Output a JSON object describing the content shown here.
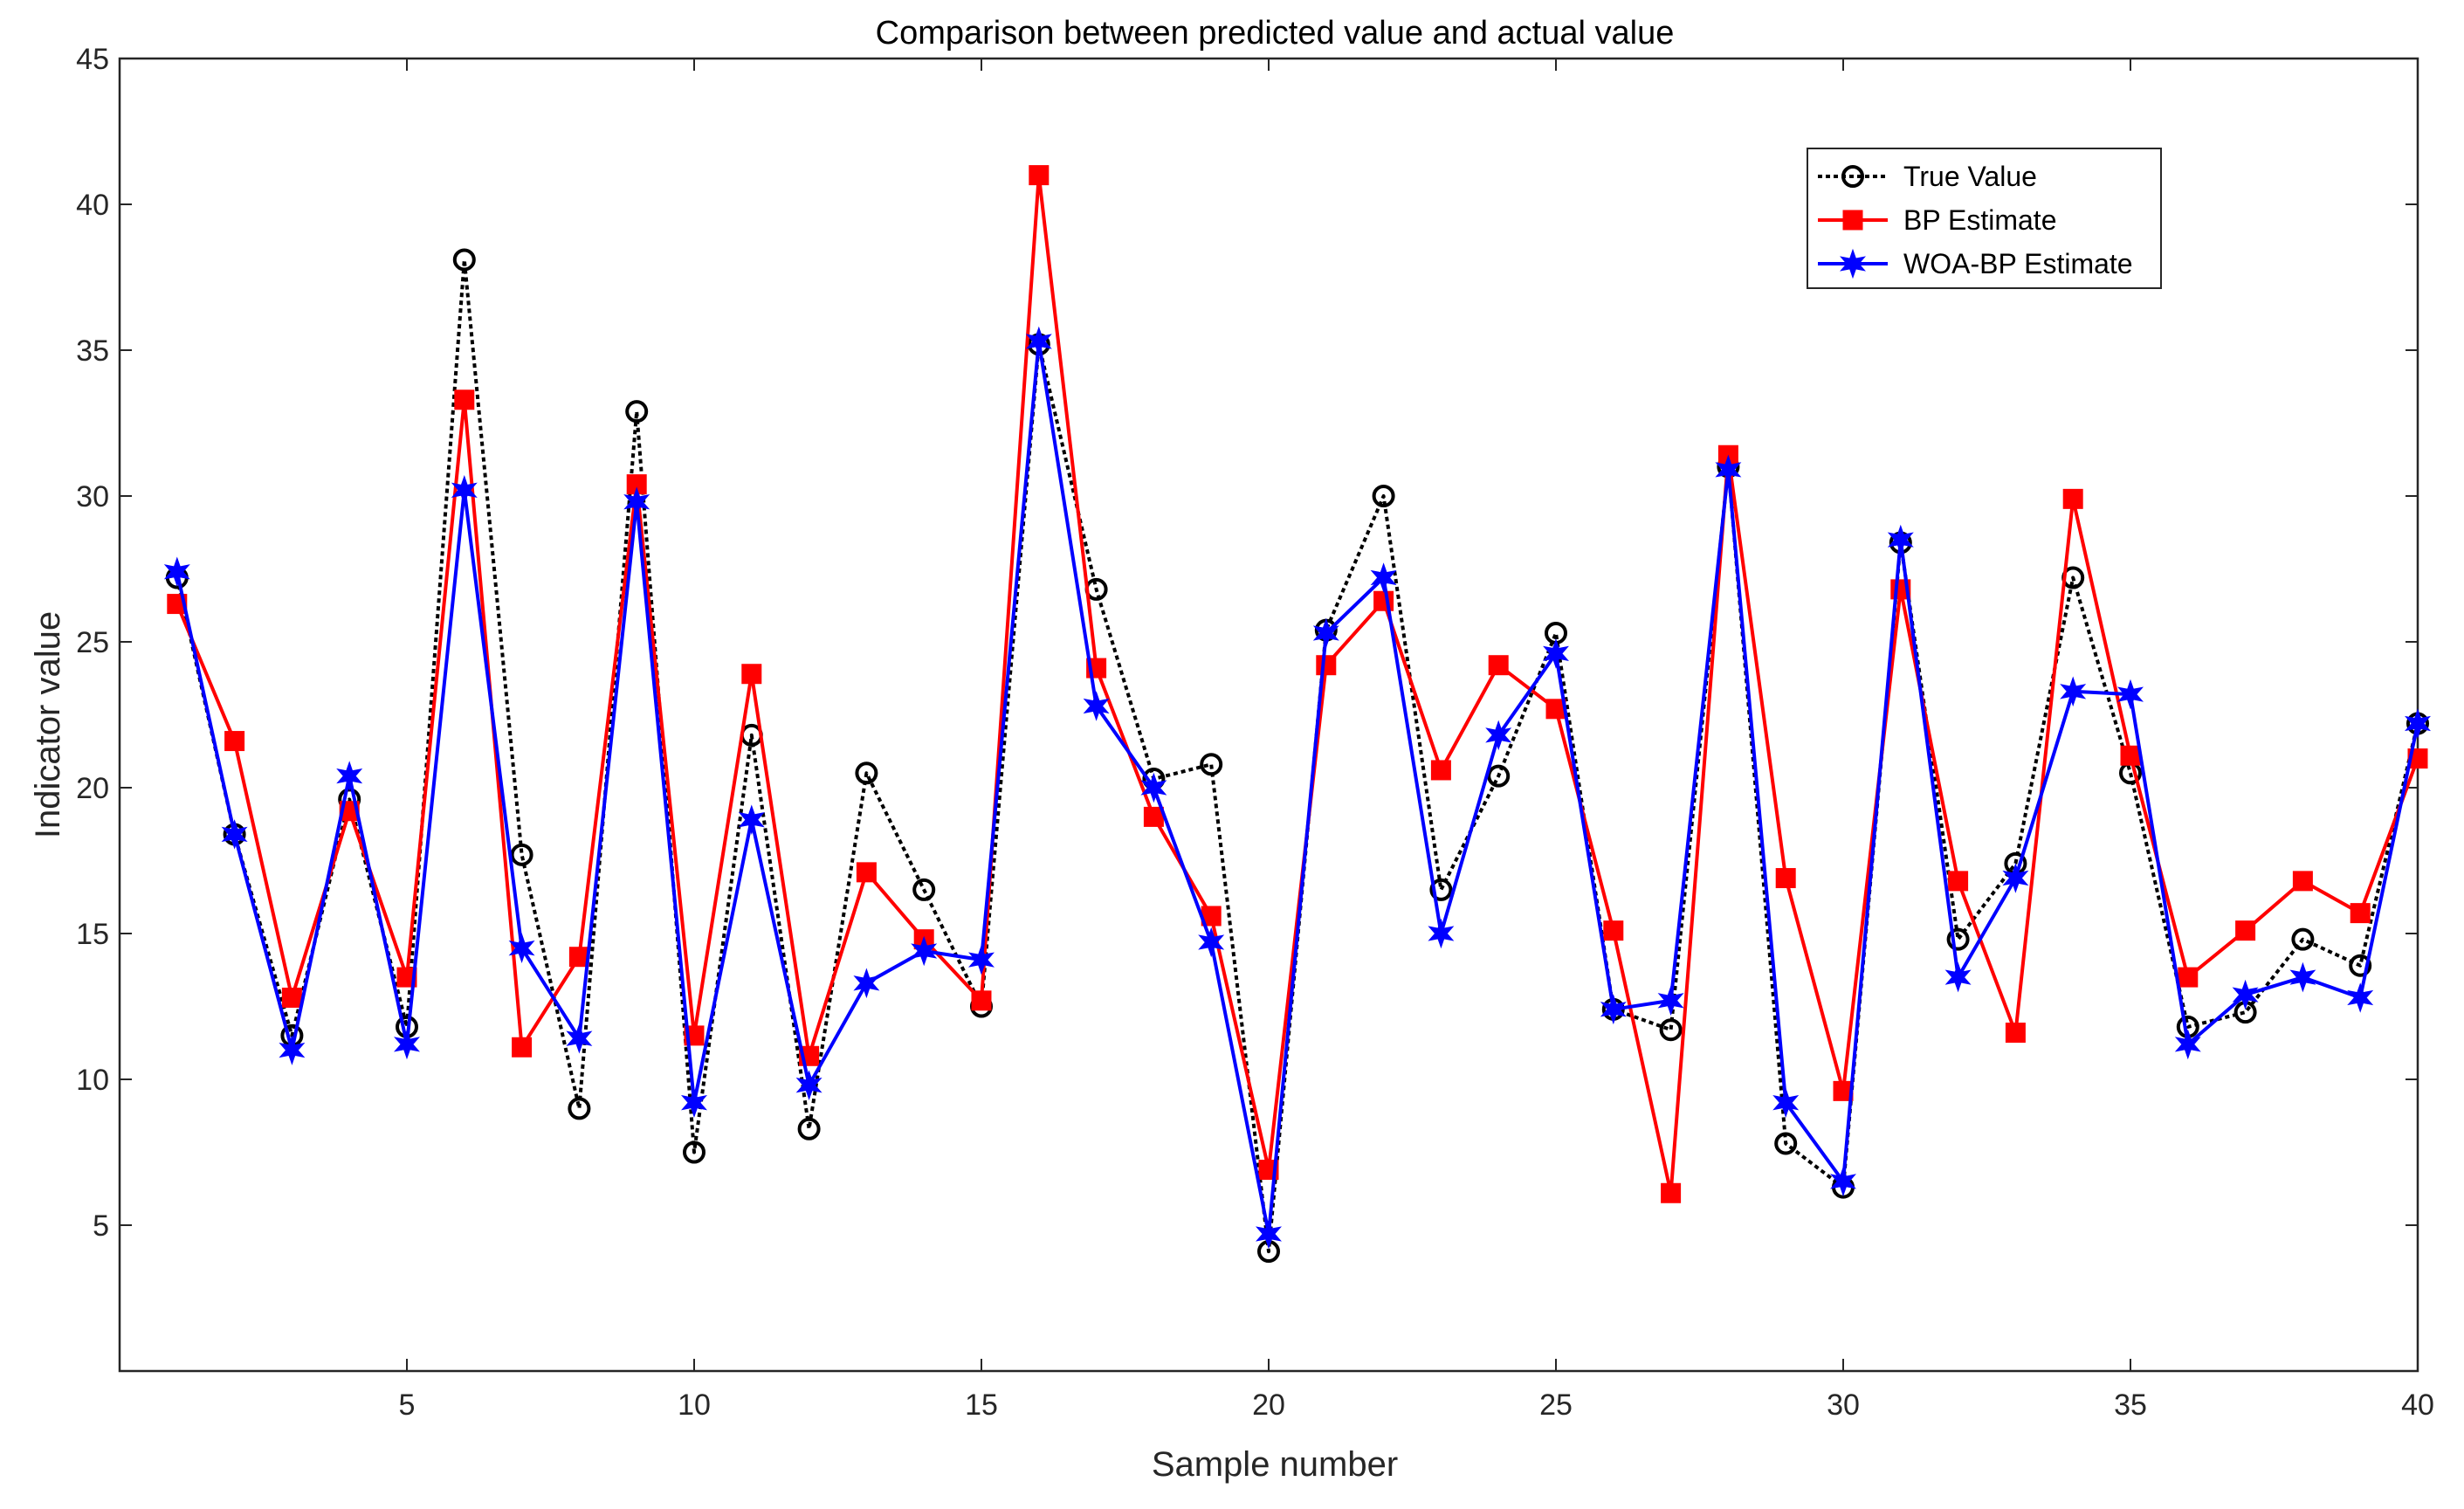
{
  "chart_data": {
    "type": "line",
    "title": "Comparison between predicted value and actual value",
    "xlabel": "Sample number",
    "ylabel": "Indicator value",
    "xlim": [
      0,
      40
    ],
    "ylim": [
      0,
      45
    ],
    "xticks": [
      5,
      10,
      15,
      20,
      25,
      30,
      35,
      40
    ],
    "yticks": [
      5,
      10,
      15,
      20,
      25,
      30,
      35,
      40,
      45
    ],
    "grid": false,
    "legend_position": "top-right",
    "x": [
      1,
      2,
      3,
      4,
      5,
      6,
      7,
      8,
      9,
      10,
      11,
      12,
      13,
      14,
      15,
      16,
      17,
      18,
      19,
      20,
      21,
      22,
      23,
      24,
      25,
      26,
      27,
      28,
      29,
      30,
      31,
      32,
      33,
      34,
      35,
      36,
      37,
      38,
      39,
      40
    ],
    "series": [
      {
        "name": "True Value",
        "color": "#000000",
        "line_style": "dotted",
        "marker": "circle",
        "values": [
          27.2,
          18.4,
          11.5,
          19.6,
          11.8,
          38.1,
          17.7,
          9.0,
          32.9,
          7.5,
          21.8,
          8.3,
          20.5,
          16.5,
          12.5,
          35.2,
          26.8,
          20.3,
          20.8,
          4.1,
          25.4,
          30.0,
          16.5,
          20.4,
          25.3,
          12.4,
          11.7,
          31.0,
          7.8,
          6.3,
          28.4,
          14.8,
          17.4,
          27.2,
          20.5,
          11.8,
          12.3,
          14.8,
          13.9,
          22.2
        ]
      },
      {
        "name": "BP Estimate",
        "color": "#ff0000",
        "line_style": "solid",
        "marker": "square",
        "values": [
          26.3,
          21.6,
          12.8,
          19.2,
          13.5,
          33.3,
          11.1,
          14.2,
          30.4,
          11.5,
          23.9,
          10.8,
          17.1,
          14.8,
          12.7,
          41.0,
          24.1,
          19.0,
          15.6,
          6.9,
          24.2,
          26.4,
          20.6,
          24.2,
          22.7,
          15.1,
          6.1,
          31.4,
          16.9,
          9.6,
          26.8,
          16.8,
          11.6,
          29.9,
          21.1,
          13.5,
          15.1,
          16.8,
          15.7,
          21.0
        ]
      },
      {
        "name": "WOA-BP  Estimate",
        "color": "#0000ff",
        "line_style": "solid",
        "marker": "star",
        "values": [
          27.4,
          18.4,
          11.0,
          20.4,
          11.2,
          30.2,
          14.5,
          11.4,
          29.8,
          9.2,
          18.9,
          9.8,
          13.3,
          14.4,
          14.1,
          35.3,
          22.8,
          20.0,
          14.7,
          4.7,
          25.3,
          27.2,
          15.0,
          21.8,
          24.6,
          12.4,
          12.7,
          30.9,
          9.2,
          6.5,
          28.5,
          13.5,
          16.9,
          23.3,
          23.2,
          11.2,
          12.9,
          13.5,
          12.8,
          22.2
        ]
      }
    ]
  }
}
